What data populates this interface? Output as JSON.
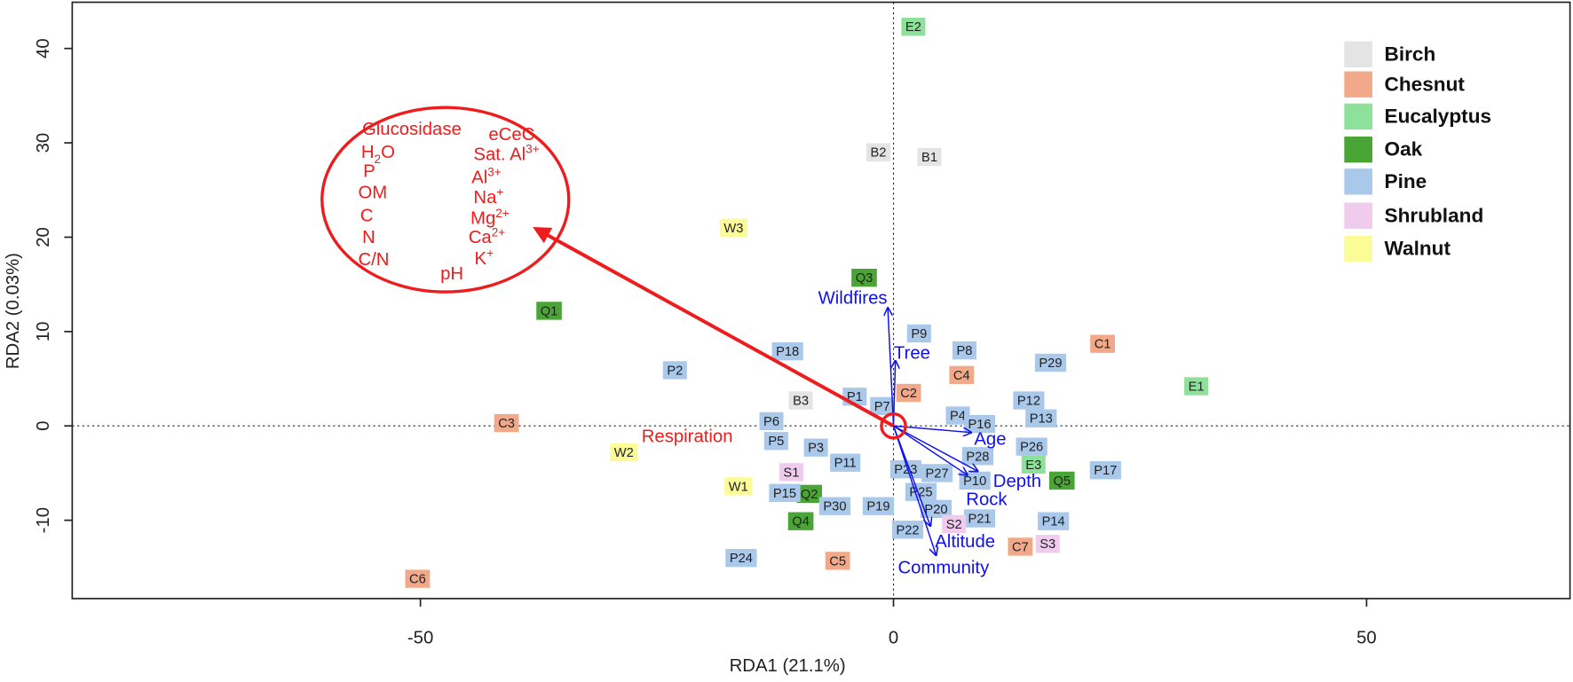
{
  "chart_data": {
    "type": "scatter",
    "x_label": "RDA1 (21.1%)",
    "y_label": "RDA2 (0.03%)",
    "xlim": [
      -86.8,
      71.5
    ],
    "ylim": [
      -18.3,
      44.9
    ],
    "xticks": [
      -50,
      0,
      50
    ],
    "yticks": [
      -10,
      0,
      10,
      20,
      30,
      40
    ],
    "legend": "top-right",
    "series": [
      {
        "name": "Birch",
        "color": "#e4e4e4",
        "labels": [
          "B2",
          "B1",
          "B3"
        ],
        "x": [
          -1.6,
          3.8,
          -9.8
        ],
        "y": [
          29.0,
          28.5,
          2.7
        ]
      },
      {
        "name": "Chesnut",
        "color": "#f2a98a",
        "labels": [
          "C1",
          "C2",
          "C3",
          "C4",
          "C5",
          "C6",
          "C7"
        ],
        "x": [
          22.1,
          1.6,
          -40.9,
          7.2,
          -5.9,
          -50.3,
          13.4
        ],
        "y": [
          8.7,
          3.5,
          0.3,
          5.4,
          -14.3,
          -16.2,
          -12.8
        ]
      },
      {
        "name": "Eucalyptus",
        "color": "#8ee19a",
        "labels": [
          "E2",
          "E1",
          "E3"
        ],
        "x": [
          2.1,
          32.0,
          14.8
        ],
        "y": [
          42.3,
          4.2,
          -4.1
        ]
      },
      {
        "name": "Oak",
        "color": "#4aa436",
        "labels": [
          "Q3",
          "Q1",
          "Q2",
          "Q4",
          "Q5"
        ],
        "x": [
          -3.1,
          -36.4,
          -8.9,
          -9.8,
          17.8
        ],
        "y": [
          15.7,
          12.2,
          -7.2,
          -10.1,
          -5.8
        ]
      },
      {
        "name": "Pine",
        "color": "#a9c8ea",
        "labels": [
          "P9",
          "P8",
          "P18",
          "P29",
          "P2",
          "P1",
          "P7",
          "P12",
          "P4",
          "P16",
          "P13",
          "P6",
          "P5",
          "P3",
          "P26",
          "P28",
          "P11",
          "P23",
          "P27",
          "P17",
          "P10",
          "P25",
          "P15",
          "P30",
          "P19",
          "P20",
          "P21",
          "P14",
          "P22",
          "P24"
        ],
        "x": [
          2.7,
          7.5,
          -11.2,
          16.6,
          -23.1,
          -4.1,
          -1.2,
          14.3,
          6.8,
          9.1,
          15.6,
          -12.9,
          -12.4,
          -8.2,
          14.6,
          8.9,
          -5.1,
          1.3,
          4.6,
          22.4,
          8.6,
          2.9,
          -11.5,
          -6.2,
          -1.6,
          4.5,
          9.1,
          16.9,
          1.5,
          -16.1
        ],
        "y": [
          9.8,
          8.0,
          7.9,
          6.7,
          5.9,
          3.1,
          2.1,
          2.7,
          1.1,
          0.2,
          0.8,
          0.5,
          -1.6,
          -2.3,
          -2.2,
          -3.2,
          -3.9,
          -4.6,
          -5.0,
          -4.7,
          -5.8,
          -7.0,
          -7.1,
          -8.5,
          -8.5,
          -8.8,
          -9.8,
          -10.1,
          -11.0,
          -14.0
        ]
      },
      {
        "name": "Shrubland",
        "color": "#f0cbee",
        "labels": [
          "S1",
          "S2",
          "S3"
        ],
        "x": [
          -10.8,
          6.4,
          16.3
        ],
        "y": [
          -4.9,
          -10.4,
          -12.5
        ]
      },
      {
        "name": "Walnut",
        "color": "#fbfb98",
        "labels": [
          "W3",
          "W2",
          "W1"
        ],
        "x": [
          -16.9,
          -28.5,
          -16.4
        ],
        "y": [
          21.0,
          -2.8,
          -6.4
        ]
      }
    ],
    "vectors": [
      {
        "name": "Wildfires",
        "x": -0.6,
        "y": 12.5
      },
      {
        "name": "Tree",
        "x": 0.2,
        "y": 6.9
      },
      {
        "name": "Age",
        "x": 8.2,
        "y": -0.7
      },
      {
        "name": "Depth",
        "x": 8.9,
        "y": -4.8
      },
      {
        "name": "Rock",
        "x": 7.8,
        "y": -5.2
      },
      {
        "name": "Altitude",
        "x": 3.9,
        "y": -10.6
      },
      {
        "name": "Community",
        "x": 4.5,
        "y": -13.7
      }
    ],
    "vector_color": "#1010ee",
    "highlight": {
      "label": "Respiration",
      "x": -37.8,
      "y": 20.9,
      "color": "#ee1c1c",
      "variables": [
        {
          "text": "Glucosidase"
        },
        {
          "text": "eCeC"
        },
        {
          "text": "H",
          "sub": "2",
          "tail": "O"
        },
        {
          "text": "Sat. Al",
          "sup": "3+"
        },
        {
          "text": "P"
        },
        {
          "text": "Al",
          "sup": "3+"
        },
        {
          "text": "OM"
        },
        {
          "text": "Na",
          "sup": "+"
        },
        {
          "text": "C"
        },
        {
          "text": "Mg",
          "sup": "2+"
        },
        {
          "text": "N"
        },
        {
          "text": "Ca",
          "sup": "2+"
        },
        {
          "text": "C/N"
        },
        {
          "text": "K",
          "sup": "+"
        },
        {
          "text": "pH"
        }
      ]
    }
  }
}
